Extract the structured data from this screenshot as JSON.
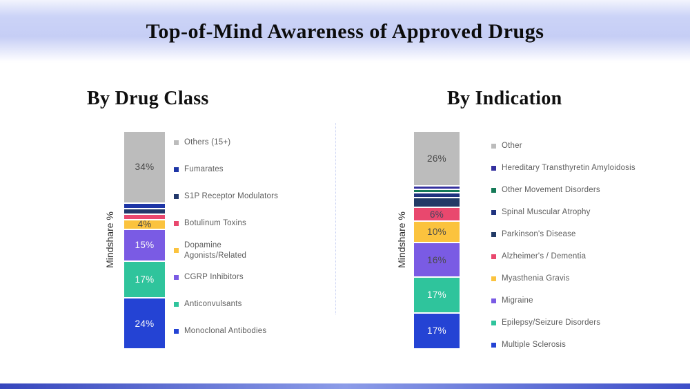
{
  "header": {
    "title": "Top-of-Mind Awareness of Approved Drugs"
  },
  "chart_data": [
    {
      "type": "bar",
      "stacked": true,
      "title": "By Drug Class",
      "xlabel": "",
      "ylabel": "Mindshare %",
      "ylim": [
        0,
        100
      ],
      "grid": false,
      "legend_position": "right",
      "series": [
        {
          "name": "Monoclonal Antibodies",
          "value": 24,
          "color": "#2443d4",
          "data_label": "24%",
          "data_label_color": "#fafafa"
        },
        {
          "name": "Anticonvulsants",
          "value": 17,
          "color": "#2fc49c",
          "data_label": "17%",
          "data_label_color": "#fafafa"
        },
        {
          "name": "CGRP Inhibitors",
          "value": 15,
          "color": "#7a5be4",
          "data_label": "15%",
          "data_label_color": "#fafafa"
        },
        {
          "name": "Dopamine Agonists/Related",
          "value": 4,
          "color": "#fbc33e",
          "data_label": "4%",
          "data_label_color": "#4a4a4a",
          "legend_label": "Dopamine\nAgonists/Related"
        },
        {
          "name": "Botulinum Toxins",
          "value": 2,
          "color": "#e9486e",
          "data_label": "",
          "data_label_color": ""
        },
        {
          "name": "S1P Receptor Modulators",
          "value": 2,
          "color": "#22386b",
          "data_label": "",
          "data_label_color": ""
        },
        {
          "name": "Fumarates",
          "value": 2,
          "color": "#1d35a6",
          "data_label": "",
          "data_label_color": ""
        },
        {
          "name": "Others (15+)",
          "value": 34,
          "color": "#bcbcbc",
          "data_label": "34%",
          "data_label_color": "#474747"
        }
      ],
      "legend_order_top_to_bottom": [
        "Others (15+)",
        "Fumarates",
        "S1P Receptor Modulators",
        "Botulinum Toxins",
        "Dopamine Agonists/Related",
        "CGRP Inhibitors",
        "Anticonvulsants",
        "Monoclonal Antibodies"
      ]
    },
    {
      "type": "bar",
      "stacked": true,
      "title": "By Indication",
      "xlabel": "",
      "ylabel": "Mindshare %",
      "ylim": [
        0,
        100
      ],
      "grid": false,
      "legend_position": "right",
      "series": [
        {
          "name": "Multiple Sclerosis",
          "value": 17,
          "color": "#2443d4",
          "data_label": "17%",
          "data_label_color": "#fafafa"
        },
        {
          "name": "Epilepsy/Seizure Disorders",
          "value": 17,
          "color": "#2fc49c",
          "data_label": "17%",
          "data_label_color": "#fafafa"
        },
        {
          "name": "Migraine",
          "value": 16,
          "color": "#7a5be4",
          "data_label": "16%",
          "data_label_color": "#4a4a4a"
        },
        {
          "name": "Myasthenia Gravis",
          "value": 10,
          "color": "#fbc33e",
          "data_label": "10%",
          "data_label_color": "#4a4a4a"
        },
        {
          "name": "Alzheimer's / Dementia",
          "value": 6,
          "color": "#e9486e",
          "data_label": "6%",
          "data_label_color": "#43435c"
        },
        {
          "name": "Parkinson's Disease",
          "value": 4,
          "color": "#223a66",
          "data_label": "",
          "data_label_color": ""
        },
        {
          "name": "Spinal Muscular Atrophy",
          "value": 2,
          "color": "#20337f",
          "data_label": "",
          "data_label_color": ""
        },
        {
          "name": "Other Movement Disorders",
          "value": 1,
          "color": "#157a58",
          "data_label": "",
          "data_label_color": ""
        },
        {
          "name": "Hereditary Transthyretin Amyloidosis",
          "value": 1,
          "color": "#34309e",
          "data_label": "",
          "data_label_color": ""
        },
        {
          "name": "Other",
          "value": 26,
          "color": "#bcbcbc",
          "data_label": "26%",
          "data_label_color": "#474747"
        }
      ],
      "legend_order_top_to_bottom": [
        "Other",
        "Hereditary Transthyretin Amyloidosis",
        "Other Movement Disorders",
        "Spinal Muscular Atrophy",
        "Parkinson's Disease",
        "Alzheimer's / Dementia",
        "Myasthenia Gravis",
        "Migraine",
        "Epilepsy/Seizure Disorders",
        "Multiple Sclerosis"
      ]
    }
  ]
}
